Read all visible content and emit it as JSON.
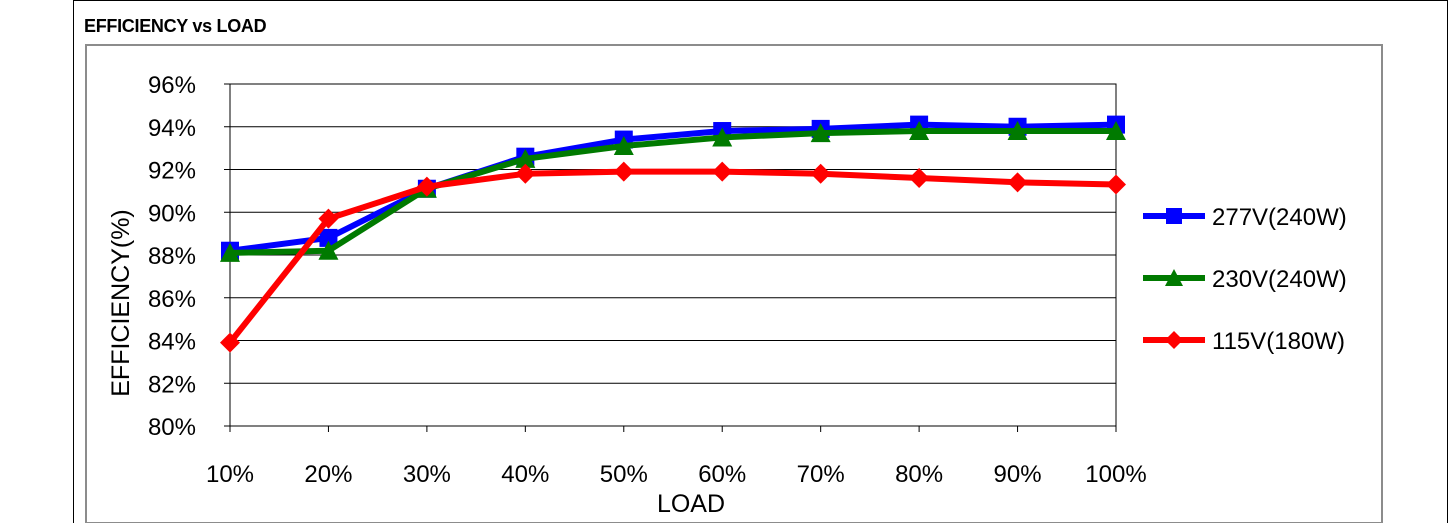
{
  "section_title": "EFFICIENCY vs LOAD",
  "chart_data": {
    "type": "line",
    "xlabel": "LOAD",
    "ylabel": "EFFICIENCY(%)",
    "categories": [
      "10%",
      "20%",
      "30%",
      "40%",
      "50%",
      "60%",
      "70%",
      "80%",
      "90%",
      "100%"
    ],
    "y_ticks": [
      "80%",
      "82%",
      "84%",
      "86%",
      "88%",
      "90%",
      "92%",
      "94%",
      "96%"
    ],
    "ylim": [
      80,
      96
    ],
    "grid": "horizontal",
    "legend_position": "right",
    "series": [
      {
        "name": "277V(240W)",
        "color": "#0000FF",
        "marker": "square",
        "values": [
          88.2,
          88.8,
          91.1,
          92.6,
          93.4,
          93.8,
          93.9,
          94.1,
          94.0,
          94.1
        ]
      },
      {
        "name": "230V(240W)",
        "color": "#007A00",
        "marker": "triangle",
        "values": [
          88.1,
          88.2,
          91.1,
          92.5,
          93.1,
          93.5,
          93.7,
          93.8,
          93.8,
          93.8
        ]
      },
      {
        "name": "115V(180W)",
        "color": "#FF0000",
        "marker": "diamond",
        "values": [
          83.9,
          89.7,
          91.2,
          91.8,
          91.9,
          91.9,
          91.8,
          91.6,
          91.4,
          91.3
        ]
      }
    ]
  }
}
